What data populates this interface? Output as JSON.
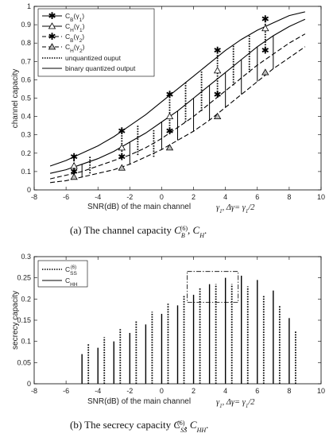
{
  "chart_data": [
    {
      "type": "line",
      "ylabel": "channel capacity",
      "xlabel": "SNR(dB) of the main channel",
      "annotation": "γ1, Δγ= γ1/2",
      "caption": "(a)  The channel capacity C_B^(6), C_H.",
      "xlim": [
        -8,
        10
      ],
      "ylim": [
        0,
        1
      ],
      "xticks": [
        "-8",
        "-6",
        "-4",
        "-2",
        "0",
        "2",
        "4",
        "6",
        "8",
        "10"
      ],
      "yticks": [
        "0",
        "0.1",
        "0.2",
        "0.3",
        "0.4",
        "0.5",
        "0.6",
        "0.7",
        "0.8",
        "0.9",
        "1"
      ],
      "legend_position": "top-left",
      "legend": [
        "C_B(γ1)",
        "C_H(γ1)",
        "C_B(γ2)",
        "C_H(γ2)",
        "unquantized ouput",
        "binary quantized output"
      ],
      "series": [
        {
          "name": "C_B(γ1)",
          "x": [
            -7,
            -6,
            -5,
            -4,
            -3,
            -2,
            -1,
            0,
            1,
            2,
            3,
            4,
            5,
            6,
            7,
            8,
            9
          ],
          "values": [
            0.13,
            0.16,
            0.2,
            0.24,
            0.29,
            0.35,
            0.41,
            0.48,
            0.55,
            0.62,
            0.69,
            0.76,
            0.82,
            0.87,
            0.91,
            0.95,
            0.97
          ]
        },
        {
          "name": "C_H(γ1)",
          "x": [
            -7,
            -6,
            -5,
            -4,
            -3,
            -2,
            -1,
            0,
            1,
            2,
            3,
            4,
            5,
            6,
            7,
            8,
            9
          ],
          "values": [
            0.09,
            0.11,
            0.14,
            0.17,
            0.21,
            0.26,
            0.31,
            0.37,
            0.43,
            0.5,
            0.57,
            0.64,
            0.71,
            0.78,
            0.84,
            0.89,
            0.93
          ]
        },
        {
          "name": "C_B(γ2)",
          "x": [
            -7,
            -6,
            -5,
            -4,
            -3,
            -2,
            -1,
            0,
            1,
            2,
            3,
            4,
            5,
            6,
            7,
            8,
            9
          ],
          "values": [
            0.06,
            0.08,
            0.1,
            0.13,
            0.16,
            0.19,
            0.23,
            0.28,
            0.34,
            0.4,
            0.47,
            0.54,
            0.61,
            0.68,
            0.74,
            0.8,
            0.85
          ]
        },
        {
          "name": "C_H(γ2)",
          "x": [
            -7,
            -6,
            -5,
            -4,
            -3,
            -2,
            -1,
            0,
            1,
            2,
            3,
            4,
            5,
            6,
            7,
            8,
            9
          ],
          "values": [
            0.04,
            0.05,
            0.07,
            0.09,
            0.11,
            0.14,
            0.18,
            0.22,
            0.27,
            0.32,
            0.38,
            0.45,
            0.52,
            0.59,
            0.66,
            0.72,
            0.78
          ]
        }
      ],
      "markers": {
        "C_B(γ1)": [
          [
            -5.5,
            0.18
          ],
          [
            -2.5,
            0.32
          ],
          [
            0.5,
            0.52
          ],
          [
            3.5,
            0.76
          ],
          [
            6.5,
            0.93
          ]
        ],
        "C_H(γ1)": [
          [
            -5.5,
            0.13
          ],
          [
            -2.5,
            0.23
          ],
          [
            0.5,
            0.4
          ],
          [
            3.5,
            0.65
          ],
          [
            6.5,
            0.88
          ]
        ],
        "C_B(γ2)": [
          [
            -5.5,
            0.1
          ],
          [
            -2.5,
            0.18
          ],
          [
            0.5,
            0.32
          ],
          [
            3.5,
            0.52
          ],
          [
            6.5,
            0.76
          ]
        ],
        "C_H(γ2)": [
          [
            -5.5,
            0.07
          ],
          [
            -2.5,
            0.12
          ],
          [
            0.5,
            0.23
          ],
          [
            3.5,
            0.4
          ],
          [
            6.5,
            0.64
          ]
        ]
      },
      "vertical_lines": [
        {
          "x": -5.5,
          "low": 0.1,
          "high": 0.18,
          "style": "dotted"
        },
        {
          "x": -5.0,
          "low": 0.07,
          "high": 0.14,
          "style": "solid"
        },
        {
          "x": -4.5,
          "low": 0.09,
          "high": 0.18,
          "style": "dotted"
        },
        {
          "x": -2.5,
          "low": 0.18,
          "high": 0.32,
          "style": "dotted"
        },
        {
          "x": -2.0,
          "low": 0.14,
          "high": 0.26,
          "style": "solid"
        },
        {
          "x": -1.5,
          "low": 0.19,
          "high": 0.35,
          "style": "dotted"
        },
        {
          "x": -0.5,
          "low": 0.18,
          "high": 0.33,
          "style": "dotted"
        },
        {
          "x": 0.0,
          "low": 0.22,
          "high": 0.37,
          "style": "solid"
        },
        {
          "x": 0.5,
          "low": 0.32,
          "high": 0.52,
          "style": "dotted"
        },
        {
          "x": 1.0,
          "low": 0.27,
          "high": 0.43,
          "style": "solid"
        },
        {
          "x": 1.5,
          "low": 0.37,
          "high": 0.59,
          "style": "dotted"
        },
        {
          "x": 2.0,
          "low": 0.32,
          "high": 0.5,
          "style": "solid"
        },
        {
          "x": 2.5,
          "low": 0.43,
          "high": 0.65,
          "style": "dotted"
        },
        {
          "x": 3.0,
          "low": 0.38,
          "high": 0.57,
          "style": "solid"
        },
        {
          "x": 3.5,
          "low": 0.52,
          "high": 0.76,
          "style": "dotted"
        },
        {
          "x": 4.0,
          "low": 0.45,
          "high": 0.64,
          "style": "solid"
        },
        {
          "x": 4.5,
          "low": 0.57,
          "high": 0.79,
          "style": "dotted"
        },
        {
          "x": 5.0,
          "low": 0.52,
          "high": 0.71,
          "style": "solid"
        },
        {
          "x": 5.5,
          "low": 0.64,
          "high": 0.84,
          "style": "dotted"
        },
        {
          "x": 6.0,
          "low": 0.59,
          "high": 0.78,
          "style": "solid"
        },
        {
          "x": 6.5,
          "low": 0.76,
          "high": 0.93,
          "style": "dotted"
        },
        {
          "x": 7.0,
          "low": 0.66,
          "high": 0.84,
          "style": "solid"
        }
      ]
    },
    {
      "type": "bar",
      "ylabel": "secrecy capacity",
      "xlabel": "SNR(dB) of the main channel",
      "annotation": "γ1, Δγ= γ1/2",
      "caption": "(b)  The secrecy capacity C_SS^(6), C_HH.",
      "xlim": [
        -8,
        10
      ],
      "ylim": [
        0,
        0.3
      ],
      "xticks": [
        "-8",
        "-6",
        "-4",
        "-2",
        "0",
        "2",
        "4",
        "6",
        "8",
        "10"
      ],
      "yticks": [
        "0",
        "0.05",
        "0.1",
        "0.15",
        "0.2",
        "0.25",
        "0.3"
      ],
      "legend_position": "top-left",
      "legend": [
        "C_SS^(6)",
        "C_HH"
      ],
      "zoom_box": {
        "x": [
          1.6,
          4.8
        ],
        "y": [
          0.192,
          0.265
        ],
        "style": "dash-dot"
      },
      "series": [
        {
          "name": "C_SS^(6)",
          "style": "dotted",
          "x": [
            -4.6,
            -3.6,
            -2.6,
            -1.6,
            -0.6,
            0.4,
            1.4,
            2.4,
            3.4,
            4.4,
            5.4,
            6.4,
            7.4,
            8.4
          ],
          "values": [
            0.095,
            0.11,
            0.13,
            0.15,
            0.17,
            0.19,
            0.21,
            0.225,
            0.235,
            0.235,
            0.23,
            0.21,
            0.185,
            0.125
          ]
        },
        {
          "name": "C_HH",
          "style": "solid",
          "x": [
            -5,
            -4,
            -3,
            -2,
            -1,
            0,
            1,
            2,
            3,
            4,
            5,
            6,
            7,
            8
          ],
          "values": [
            0.07,
            0.085,
            0.1,
            0.12,
            0.14,
            0.165,
            0.185,
            0.21,
            0.235,
            0.25,
            0.255,
            0.245,
            0.22,
            0.155
          ]
        }
      ]
    }
  ],
  "legend_a": {
    "cb1": "C",
    "cb1_sub": "B",
    "cb1_arg": "(γ",
    "cb1_arg_sub": "1",
    "cb1_close": ")",
    "ch1": "C",
    "ch1_sub": "H",
    "ch1_arg": "(γ",
    "ch1_arg_sub": "1",
    "ch1_close": ")",
    "cb2": "C",
    "cb2_sub": "B",
    "cb2_arg": "(γ",
    "cb2_arg_sub": "2",
    "cb2_close": ")",
    "ch2": "C",
    "ch2_sub": "H",
    "ch2_arg": "(γ",
    "ch2_arg_sub": "2",
    "ch2_close": ")",
    "unq": "unquantized ouput",
    "bin": "binary quantized output"
  },
  "legend_b": {
    "css": "C",
    "css_sub": "SS",
    "css_sup": "(6)",
    "chh": "C",
    "chh_sub": "HH"
  },
  "annotation": {
    "g": "γ",
    "g_sub": "1",
    "comma": ", Δγ= γ",
    "g2_sub": "1",
    "tail": "/2"
  },
  "caption_a": {
    "prefix": "(a)  The channel capacity ",
    "c": "C",
    "sub": "B",
    "sup": "(6)",
    "mid": ", ",
    "c2": "C",
    "sub2": "H",
    "end": "."
  },
  "caption_b": {
    "prefix": "(b)  The secrecy capacity ",
    "c": "C",
    "sub": "SS",
    "sup": "(6)",
    "mid": ", ",
    "c2": "C",
    "sub2": "HH",
    "end": "."
  }
}
